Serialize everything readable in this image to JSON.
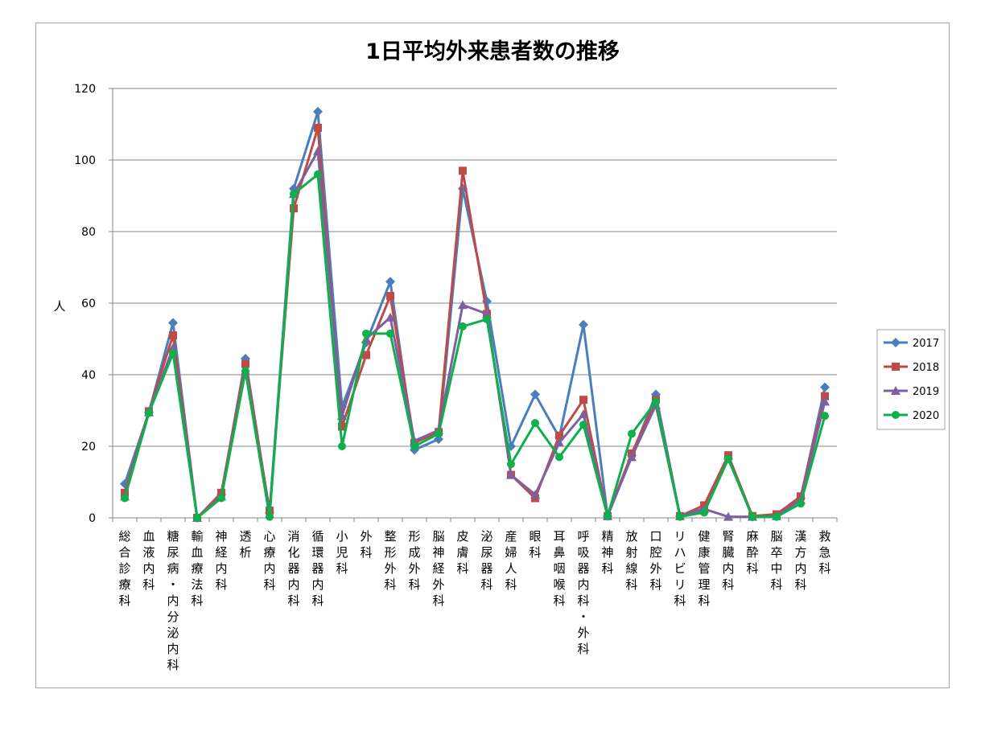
{
  "chart_data": {
    "type": "line",
    "title": "1日平均外来患者数の推移",
    "ylabel": "人",
    "ylim": [
      0,
      120
    ],
    "yticks": [
      0,
      20,
      40,
      60,
      80,
      100,
      120
    ],
    "grid": true,
    "legend_position": "right",
    "categories": [
      "総合診療科",
      "血液内科",
      "糖尿病・内分泌内科",
      "輸血療法科",
      "神経内科",
      "透析",
      "心療内科",
      "消化器内科",
      "循環器内科",
      "小児科",
      "外科",
      "整形外科",
      "形成外科",
      "脳神経外科",
      "皮膚科",
      "泌尿器科",
      "産婦人科",
      "眼科",
      "耳鼻咽喉科",
      "呼吸器内科・外科",
      "精神科",
      "放射線科",
      "口腔外科",
      "リハビリ科",
      "健康管理科",
      "腎臓内科",
      "麻酔科",
      "脳卒中科",
      "漢方内科",
      "救急科"
    ],
    "series": [
      {
        "name": "2017",
        "color": "#4a7ebb",
        "marker": "diamond",
        "values": [
          9.5,
          29.5,
          54.5,
          0,
          6.5,
          44.5,
          1.5,
          92,
          113.5,
          31,
          49,
          66,
          19,
          22,
          92,
          60.5,
          20,
          34.5,
          22.5,
          54,
          0.5,
          17.5,
          34.5,
          0.5,
          2,
          16.5,
          0.3,
          0.7,
          5.5,
          36.5
        ]
      },
      {
        "name": "2018",
        "color": "#be4b48",
        "marker": "square",
        "values": [
          7,
          29.8,
          51,
          0,
          7,
          43,
          2,
          86.5,
          109,
          25.5,
          45.5,
          62,
          21,
          24,
          97,
          57,
          12,
          5.5,
          23,
          33,
          0.5,
          18,
          33,
          0.5,
          3.5,
          17.5,
          0.5,
          1,
          6,
          34
        ]
      },
      {
        "name": "2019",
        "color": "#7d60a0",
        "marker": "triangle",
        "values": [
          6,
          29.5,
          47.5,
          0,
          6,
          41,
          1,
          90.5,
          102.5,
          28.5,
          50,
          56,
          21.5,
          24.5,
          59.5,
          57,
          12,
          6.5,
          21,
          29,
          0.5,
          17,
          31.5,
          0.5,
          2.5,
          0.3,
          0.3,
          0.5,
          5,
          32.5
        ]
      },
      {
        "name": "2020",
        "color": "#0db04b",
        "marker": "circle",
        "values": [
          5.5,
          29.3,
          46,
          0,
          5.5,
          41,
          0.3,
          90.5,
          96,
          20,
          51.5,
          51.5,
          20,
          23.5,
          53.5,
          55.5,
          15,
          26.5,
          17,
          26,
          0.5,
          23.5,
          32.5,
          0.3,
          1.5,
          16.5,
          0.3,
          0.3,
          4,
          28.5
        ]
      }
    ]
  }
}
